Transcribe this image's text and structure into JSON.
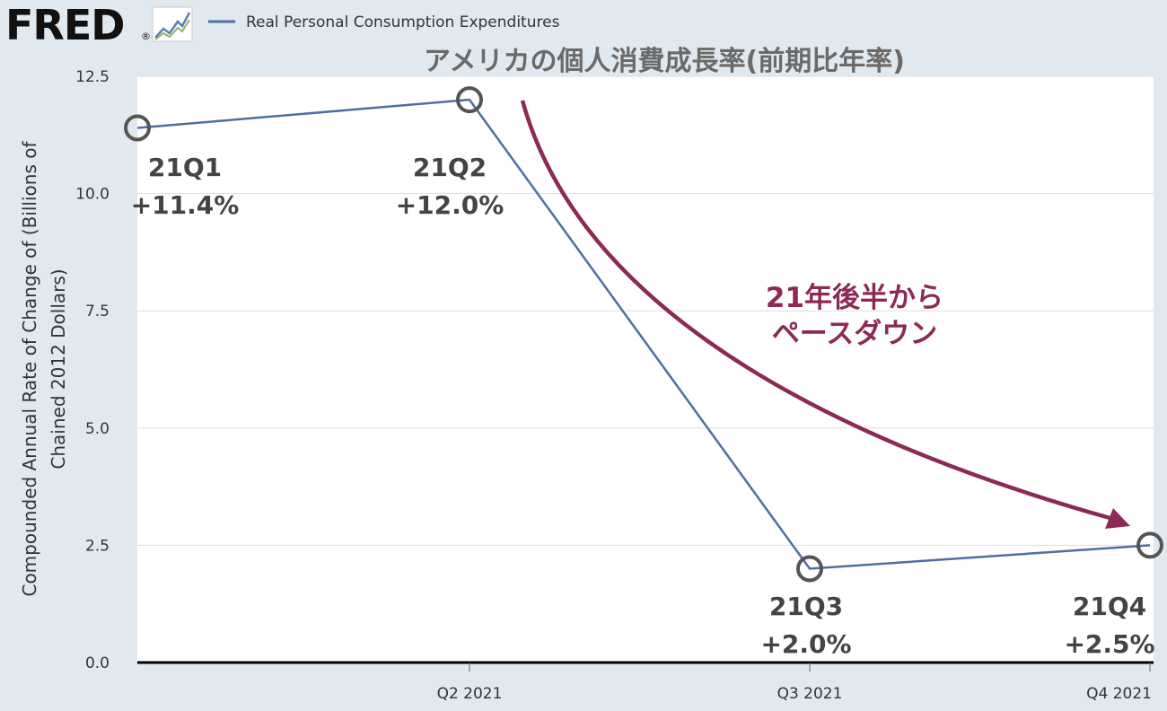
{
  "brand": {
    "logo": "FRED",
    "registered": "®"
  },
  "colors": {
    "background": "#e1e9f0",
    "series": "#4e6fa1",
    "arrow": "#8c2a55",
    "marker": "#555555",
    "grid": "#dddddd"
  },
  "chart_data": {
    "type": "line",
    "title": "アメリカの個人消費成長率(前期比年率)",
    "legend": {
      "position": "top-left",
      "entries": [
        "Real Personal Consumption Expenditures"
      ]
    },
    "ylabel_lines": [
      "Compounded Annual Rate of Change of (Billions of",
      "Chained 2012 Dollars)"
    ],
    "ylim": [
      0,
      12.5
    ],
    "yticks": [
      "0.0",
      "2.5",
      "5.0",
      "7.5",
      "10.0",
      "12.5"
    ],
    "grid": true,
    "xticks": [
      "Q2 2021",
      "Q3 2021",
      "Q4 2021"
    ],
    "series": [
      {
        "name": "Real Personal Consumption Expenditures",
        "x": [
          "2021Q1",
          "2021Q2",
          "2021Q3",
          "2021Q4"
        ],
        "values": [
          11.4,
          12.0,
          2.0,
          2.5
        ]
      }
    ],
    "point_labels": [
      {
        "quarter": "21Q1",
        "value": "+11.4%"
      },
      {
        "quarter": "21Q2",
        "value": "+12.0%"
      },
      {
        "quarter": "21Q3",
        "value": "+2.0%"
      },
      {
        "quarter": "21Q4",
        "value": "+2.5%"
      }
    ],
    "annotation": {
      "lines": [
        "21年後半から",
        "ペースダウン"
      ]
    }
  }
}
